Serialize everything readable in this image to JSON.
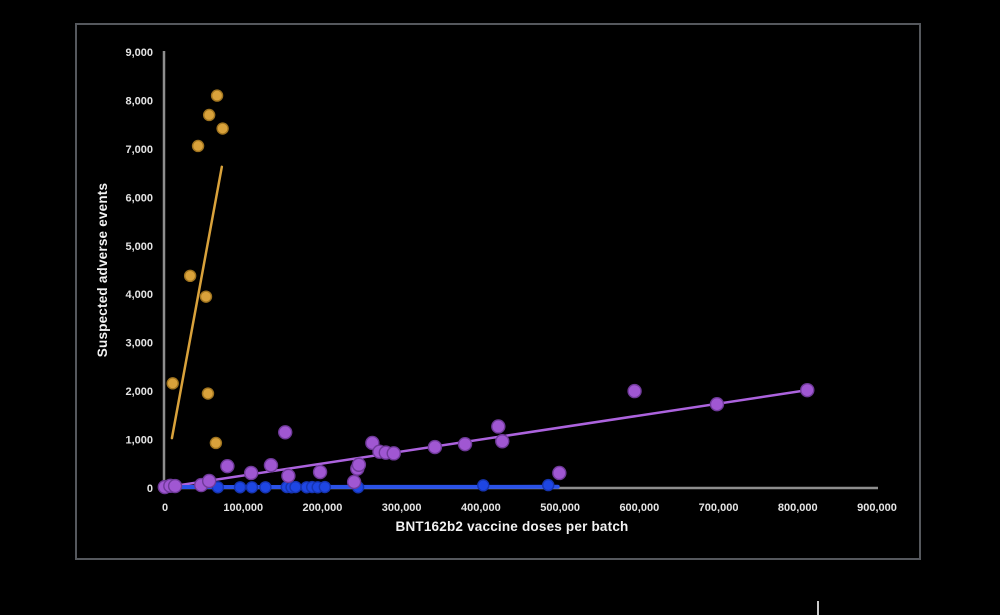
{
  "chart_data": {
    "type": "scatter",
    "title": "",
    "xlabel": "BNT162b2 vaccine doses per batch",
    "ylabel": "Suspected adverse events",
    "xlim": [
      0,
      900000
    ],
    "ylim": [
      0,
      9000
    ],
    "x_ticks": [
      0,
      100000,
      200000,
      300000,
      400000,
      500000,
      600000,
      700000,
      800000,
      900000
    ],
    "x_tick_labels": [
      "0",
      "100,000",
      "200,000",
      "300,000",
      "400,000",
      "500,000",
      "600,000",
      "700,000",
      "800,000",
      "900,000"
    ],
    "y_ticks": [
      0,
      1000,
      2000,
      3000,
      4000,
      5000,
      6000,
      7000,
      8000,
      9000
    ],
    "y_tick_labels": [
      "0",
      "1,000",
      "2,000",
      "3,000",
      "4,000",
      "5,000",
      "6,000",
      "7,000",
      "8,000",
      "9,000"
    ],
    "grid": false,
    "legend": null,
    "axis_color": "#8e8e8e",
    "tick_label_color": "#e4e4e4",
    "series": [
      {
        "name": "orange",
        "point_color": "#d9a23b",
        "point_edge_color": "#a0741f",
        "line_color": "#d9a23b",
        "points": [
          [
            11000,
            2160
          ],
          [
            33000,
            4380
          ],
          [
            43000,
            7060
          ],
          [
            53000,
            3950
          ],
          [
            55500,
            1950
          ],
          [
            57000,
            7700
          ],
          [
            67000,
            8100
          ],
          [
            74000,
            7420
          ],
          [
            65500,
            930
          ]
        ],
        "trendline": {
          "x1": 10000,
          "y1": 1030,
          "x2": 73000,
          "y2": 6630
        }
      },
      {
        "name": "purple",
        "point_color": "#a057d2",
        "point_edge_color": "#6f3a99",
        "line_color": "#ac63de",
        "points": [
          [
            1000,
            20
          ],
          [
            8000,
            45
          ],
          [
            14000,
            40
          ],
          [
            47000,
            60
          ],
          [
            57000,
            145
          ],
          [
            80000,
            450
          ],
          [
            110000,
            310
          ],
          [
            135000,
            470
          ],
          [
            153000,
            1150
          ],
          [
            157000,
            250
          ],
          [
            197000,
            330
          ],
          [
            240000,
            125
          ],
          [
            244000,
            400
          ],
          [
            246000,
            480
          ],
          [
            263000,
            930
          ],
          [
            272000,
            750
          ],
          [
            280000,
            730
          ],
          [
            290000,
            715
          ],
          [
            342000,
            845
          ],
          [
            380000,
            905
          ],
          [
            422000,
            1270
          ],
          [
            427000,
            965
          ],
          [
            499000,
            310
          ],
          [
            594000,
            2000
          ],
          [
            698000,
            1730
          ],
          [
            812000,
            2020
          ]
        ],
        "trendline": {
          "x1": 0,
          "y1": 10,
          "x2": 812000,
          "y2": 2020
        }
      },
      {
        "name": "blue",
        "point_color": "#1e46e3",
        "point_edge_color": "#1634b0",
        "line_color": "#2a52e8",
        "points": [
          [
            68000,
            15
          ],
          [
            96000,
            15
          ],
          [
            111000,
            15
          ],
          [
            128000,
            15
          ],
          [
            155000,
            20
          ],
          [
            161000,
            15
          ],
          [
            166000,
            20
          ],
          [
            180000,
            15
          ],
          [
            187000,
            20
          ],
          [
            194000,
            15
          ],
          [
            203000,
            20
          ],
          [
            245000,
            15
          ],
          [
            403000,
            55
          ],
          [
            485000,
            60
          ]
        ],
        "trendline": {
          "x1": 0,
          "y1": 20,
          "x2": 497000,
          "y2": 25
        }
      }
    ]
  }
}
